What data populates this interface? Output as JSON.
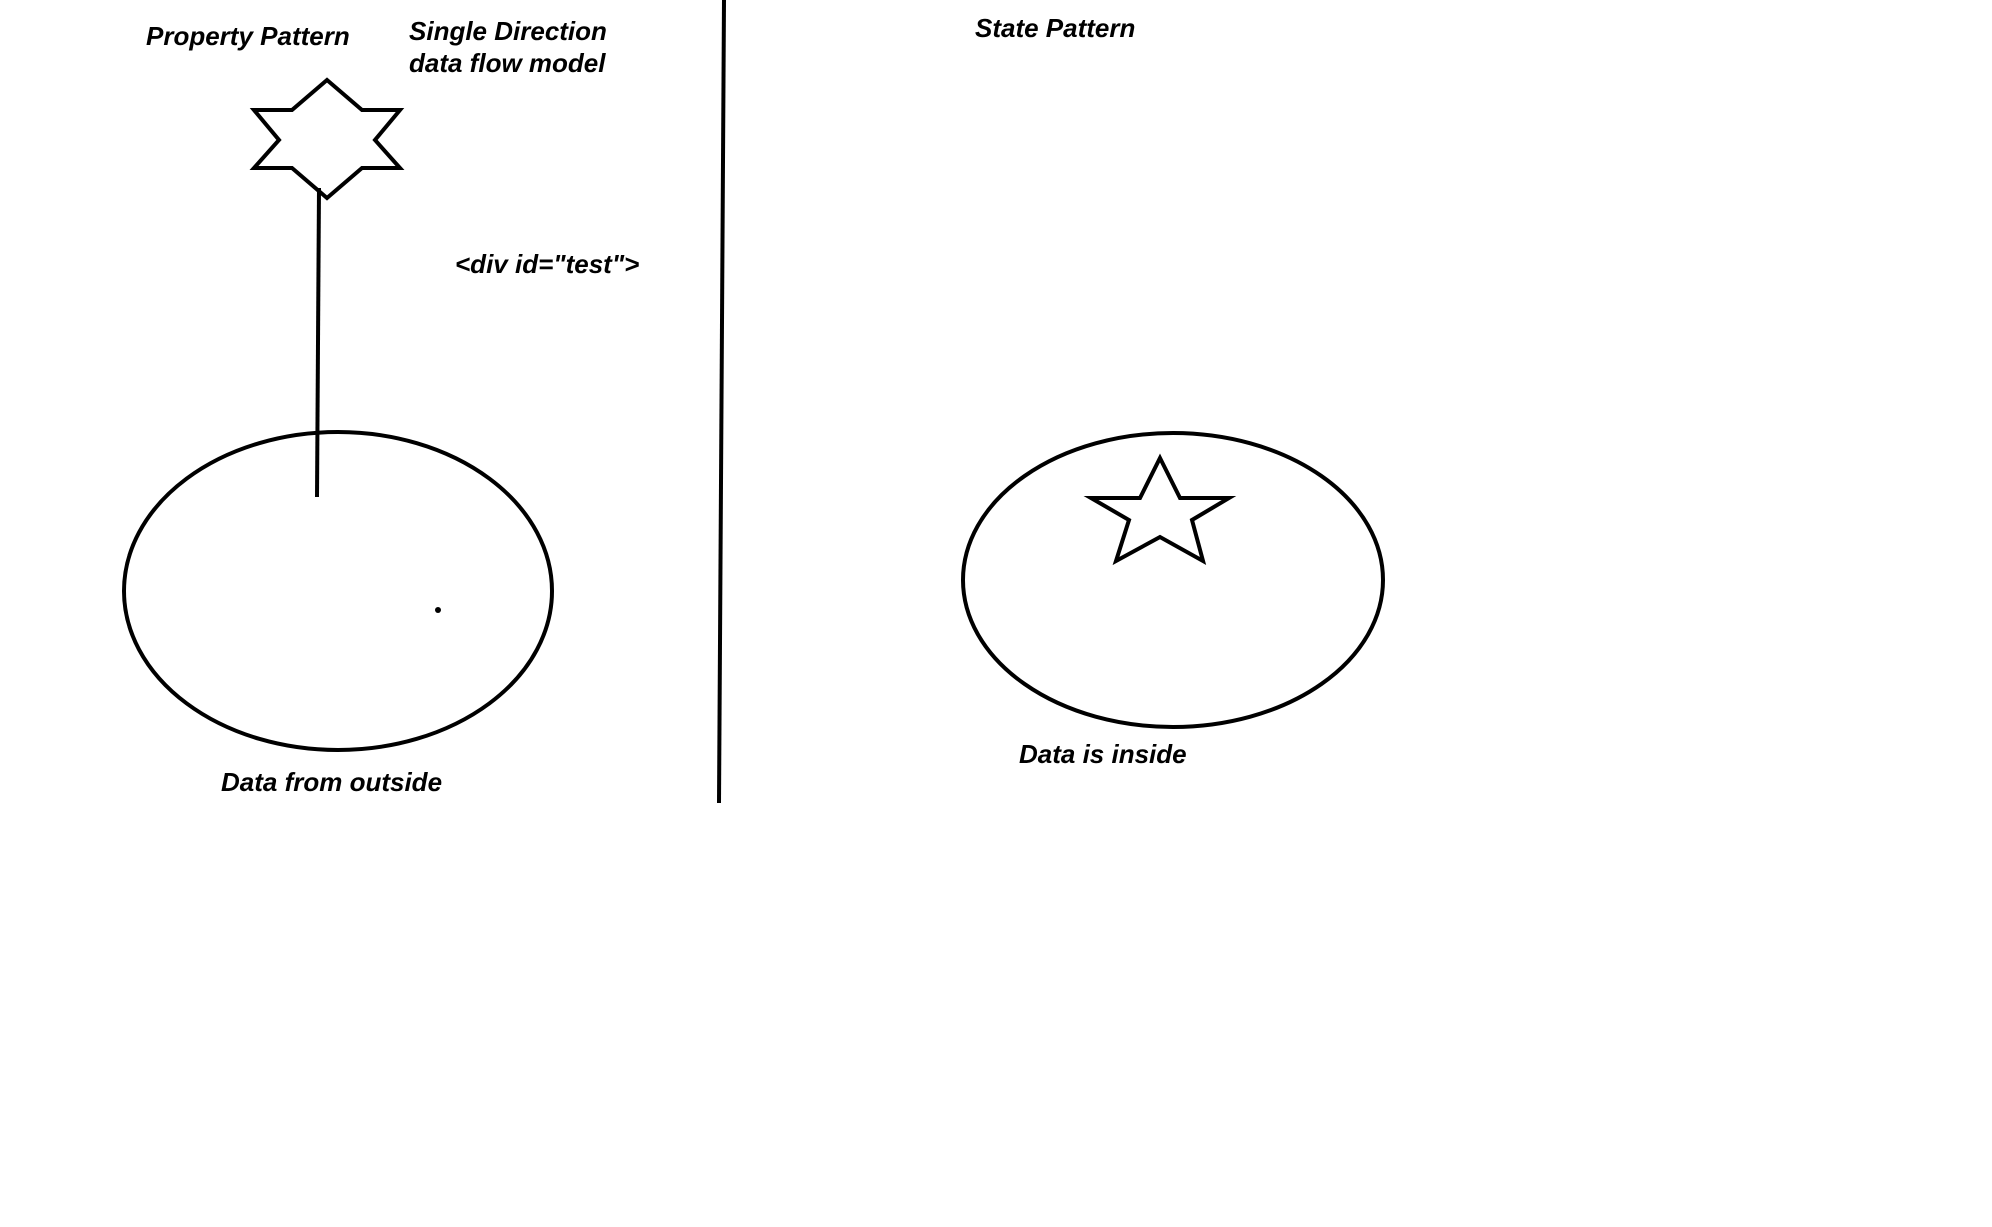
{
  "left_panel": {
    "title": "Property Pattern",
    "flow_label_line1": "Single Direction",
    "flow_label_line2": "data flow model",
    "code_label": "<div  id=\"test\">",
    "ellipse_caption": "Data from outside"
  },
  "right_panel": {
    "title": "State Pattern",
    "ellipse_caption": "Data is inside"
  },
  "shapes": {
    "left_star": "six-point-star-icon",
    "right_star": "five-point-star-icon",
    "stroke_color": "#000000",
    "background_color": "#ffffff"
  }
}
